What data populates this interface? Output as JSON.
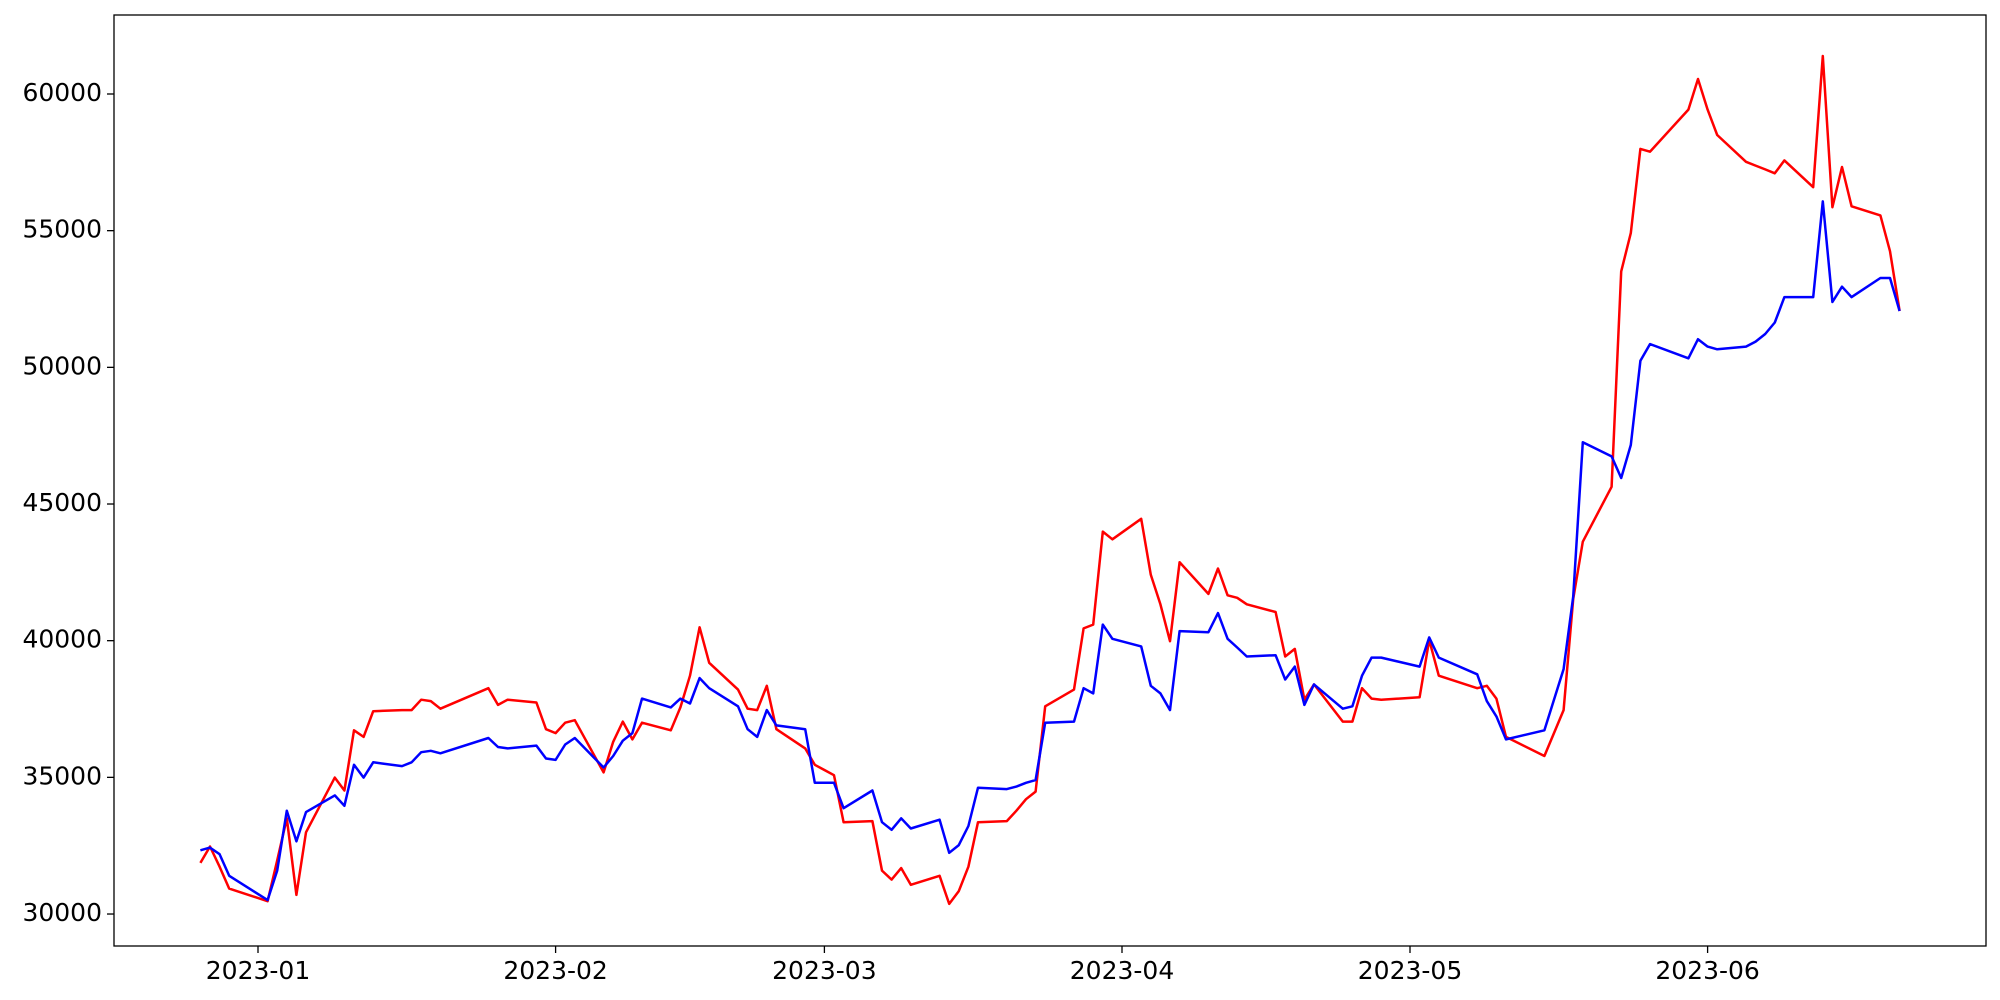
{
  "chart_data": {
    "type": "line",
    "x": [
      "2022-12-26",
      "2022-12-27",
      "2022-12-28",
      "2022-12-29",
      "2023-01-02",
      "2023-01-03",
      "2023-01-04",
      "2023-01-05",
      "2023-01-06",
      "2023-01-09",
      "2023-01-10",
      "2023-01-11",
      "2023-01-12",
      "2023-01-13",
      "2023-01-16",
      "2023-01-17",
      "2023-01-18",
      "2023-01-19",
      "2023-01-20",
      "2023-01-25",
      "2023-01-26",
      "2023-01-27",
      "2023-01-30",
      "2023-01-31",
      "2023-02-01",
      "2023-02-02",
      "2023-02-03",
      "2023-02-06",
      "2023-02-07",
      "2023-02-08",
      "2023-02-09",
      "2023-02-10",
      "2023-02-13",
      "2023-02-14",
      "2023-02-15",
      "2023-02-16",
      "2023-02-17",
      "2023-02-20",
      "2023-02-21",
      "2023-02-22",
      "2023-02-23",
      "2023-02-24",
      "2023-02-27",
      "2023-02-28",
      "2023-03-01",
      "2023-03-02",
      "2023-03-03",
      "2023-03-06",
      "2023-03-07",
      "2023-03-08",
      "2023-03-09",
      "2023-03-10",
      "2023-03-13",
      "2023-03-14",
      "2023-03-15",
      "2023-03-16",
      "2023-03-17",
      "2023-03-20",
      "2023-03-21",
      "2023-03-22",
      "2023-03-23",
      "2023-03-24",
      "2023-03-27",
      "2023-03-28",
      "2023-03-29",
      "2023-03-30",
      "2023-03-31",
      "2023-04-03",
      "2023-04-04",
      "2023-04-05",
      "2023-04-06",
      "2023-04-07",
      "2023-04-10",
      "2023-04-11",
      "2023-04-12",
      "2023-04-13",
      "2023-04-14",
      "2023-04-17",
      "2023-04-18",
      "2023-04-19",
      "2023-04-20",
      "2023-04-21",
      "2023-04-24",
      "2023-04-25",
      "2023-04-26",
      "2023-04-27",
      "2023-04-28",
      "2023-05-02",
      "2023-05-03",
      "2023-05-04",
      "2023-05-08",
      "2023-05-09",
      "2023-05-10",
      "2023-05-11",
      "2023-05-15",
      "2023-05-17",
      "2023-05-18",
      "2023-05-19",
      "2023-05-22",
      "2023-05-23",
      "2023-05-24",
      "2023-05-25",
      "2023-05-26",
      "2023-05-30",
      "2023-05-31",
      "2023-06-01",
      "2023-06-02",
      "2023-06-05",
      "2023-06-06",
      "2023-06-07",
      "2023-06-08",
      "2023-06-09",
      "2023-06-12",
      "2023-06-13",
      "2023-06-14",
      "2023-06-15",
      "2023-06-16",
      "2023-06-19",
      "2023-06-20",
      "2023-06-21"
    ],
    "series": [
      {
        "color": "#ff0000",
        "values": [
          31870,
          32470,
          31730,
          30930,
          30470,
          31960,
          33500,
          30700,
          32990,
          34990,
          34520,
          36720,
          36480,
          37420,
          37460,
          37460,
          37840,
          37790,
          37510,
          38260,
          37650,
          37840,
          37740,
          36760,
          36620,
          37000,
          37090,
          35180,
          36300,
          37040,
          36390,
          37000,
          36720,
          37560,
          38720,
          40490,
          39190,
          38210,
          37510,
          37460,
          38350,
          36760,
          36060,
          35460,
          35270,
          35080,
          33360,
          33400,
          31590,
          31260,
          31680,
          31070,
          31400,
          30370,
          30840,
          31730,
          33360,
          33400,
          33780,
          34200,
          34480,
          37600,
          38210,
          40450,
          40590,
          43990,
          43710,
          44460,
          42410,
          41330,
          39980,
          42870,
          41710,
          42640,
          41660,
          41570,
          41330,
          41050,
          39420,
          39700,
          37840,
          38400,
          37040,
          37040,
          38260,
          37880,
          37840,
          37930,
          40030,
          38720,
          38260,
          38350,
          37880,
          36480,
          35780,
          37460,
          41520,
          43620,
          45630,
          53510,
          54910,
          57990,
          57890,
          59430,
          60550,
          59430,
          58500,
          57520,
          57380,
          57240,
          57100,
          57570,
          56590,
          61390,
          55860,
          57330,
          55890,
          55560,
          54250,
          52060
        ]
      },
      {
        "color": "#0000ff",
        "values": [
          32330,
          32430,
          32190,
          31400,
          30510,
          31590,
          33780,
          32660,
          33730,
          34340,
          33960,
          35460,
          34990,
          35550,
          35410,
          35550,
          35920,
          35970,
          35880,
          36440,
          36110,
          36060,
          36160,
          35690,
          35640,
          36200,
          36440,
          35360,
          35780,
          36340,
          36620,
          37880,
          37560,
          37880,
          37700,
          38630,
          38260,
          37600,
          36760,
          36480,
          37460,
          36900,
          36760,
          34800,
          34800,
          34800,
          33870,
          34520,
          33360,
          33080,
          33500,
          33130,
          33450,
          32240,
          32520,
          33220,
          34620,
          34570,
          34660,
          34800,
          34900,
          37000,
          37040,
          38260,
          38070,
          40590,
          40070,
          39790,
          38350,
          38070,
          37460,
          40350,
          40310,
          41010,
          40070,
          39750,
          39420,
          39470,
          38580,
          39050,
          37650,
          38400,
          37510,
          37600,
          38720,
          39380,
          39380,
          39050,
          40120,
          39380,
          38770,
          37790,
          37230,
          36390,
          36720,
          38960,
          41610,
          47260,
          46740,
          45950,
          47160,
          50240,
          50850,
          50330,
          51030,
          50760,
          50660,
          50760,
          50940,
          51220,
          51640,
          52570,
          52570,
          56070,
          52390,
          52950,
          52570,
          53270,
          53270,
          52060
        ]
      }
    ],
    "xlim": [
      "2022-12-17",
      "2023-06-30"
    ],
    "xticks": [
      {
        "value": "2023-01-01",
        "label": "2023-01"
      },
      {
        "value": "2023-02-01",
        "label": "2023-02"
      },
      {
        "value": "2023-03-01",
        "label": "2023-03"
      },
      {
        "value": "2023-04-01",
        "label": "2023-04"
      },
      {
        "value": "2023-05-01",
        "label": "2023-05"
      },
      {
        "value": "2023-06-01",
        "label": "2023-06"
      }
    ],
    "ylim": [
      28830,
      62890
    ],
    "yticks": [
      30000,
      35000,
      40000,
      45000,
      50000,
      55000,
      60000
    ]
  }
}
